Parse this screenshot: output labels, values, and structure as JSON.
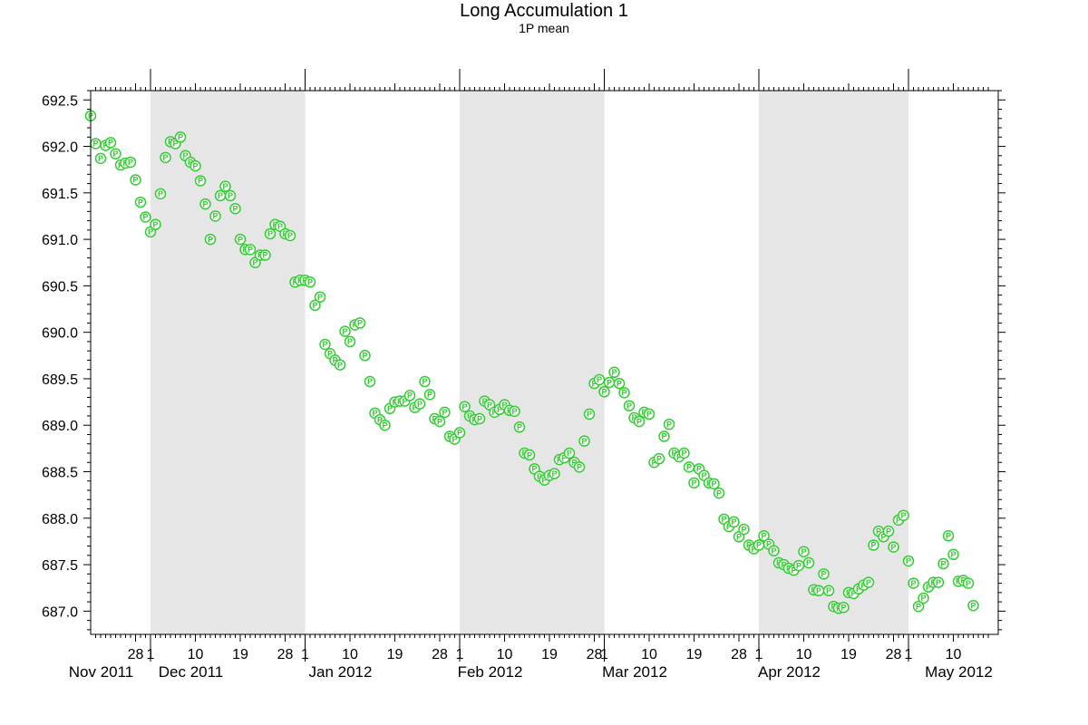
{
  "chart_data": {
    "type": "scatter",
    "title": "Long Accumulation 1",
    "subtitle": "1P mean",
    "marker_label": "P",
    "xlim": [
      "2011-11-19",
      "2012-05-18"
    ],
    "ylim": [
      686.75,
      692.6
    ],
    "yticks": [
      687.0,
      687.5,
      688.0,
      688.5,
      689.0,
      689.5,
      690.0,
      690.5,
      691.0,
      691.5,
      692.0,
      692.5
    ],
    "ytick_labels": [
      "687.0",
      "687.5",
      "688.0",
      "688.5",
      "689.0",
      "689.5",
      "690.0",
      "690.5",
      "691.0",
      "691.5",
      "692.0",
      "692.5"
    ],
    "x_day_ticks": [
      {
        "date": "2011-11-28",
        "label": "28"
      },
      {
        "date": "2011-12-01",
        "label": "1"
      },
      {
        "date": "2011-12-10",
        "label": "10"
      },
      {
        "date": "2011-12-19",
        "label": "19"
      },
      {
        "date": "2011-12-28",
        "label": "28"
      },
      {
        "date": "2012-01-01",
        "label": "1"
      },
      {
        "date": "2012-01-10",
        "label": "10"
      },
      {
        "date": "2012-01-19",
        "label": "19"
      },
      {
        "date": "2012-01-28",
        "label": "28"
      },
      {
        "date": "2012-02-01",
        "label": "1"
      },
      {
        "date": "2012-02-10",
        "label": "10"
      },
      {
        "date": "2012-02-19",
        "label": "19"
      },
      {
        "date": "2012-02-28",
        "label": "28"
      },
      {
        "date": "2012-03-01",
        "label": "1"
      },
      {
        "date": "2012-03-10",
        "label": "10"
      },
      {
        "date": "2012-03-19",
        "label": "19"
      },
      {
        "date": "2012-03-28",
        "label": "28"
      },
      {
        "date": "2012-04-01",
        "label": "1"
      },
      {
        "date": "2012-04-10",
        "label": "10"
      },
      {
        "date": "2012-04-19",
        "label": "19"
      },
      {
        "date": "2012-04-28",
        "label": "28"
      },
      {
        "date": "2012-05-01",
        "label": "1"
      },
      {
        "date": "2012-05-10",
        "label": "10"
      }
    ],
    "month_labels": [
      {
        "date": "2011-11-20",
        "label": "Nov 2011"
      },
      {
        "date": "2011-12-08",
        "label": "Dec 2011"
      },
      {
        "date": "2012-01-07",
        "label": "Jan 2012"
      },
      {
        "date": "2012-02-06",
        "label": "Feb 2012"
      },
      {
        "date": "2012-03-06",
        "label": "Mar 2012"
      },
      {
        "date": "2012-04-06",
        "label": "Apr 2012"
      },
      {
        "date": "2012-05-10",
        "label": "May 2012"
      }
    ],
    "month_boundaries": [
      "2011-12-01",
      "2012-01-01",
      "2012-02-01",
      "2012-03-01",
      "2012-04-01",
      "2012-05-01"
    ],
    "shaded_months": [
      {
        "start": "2011-12-01",
        "end": "2012-01-01"
      },
      {
        "start": "2012-02-01",
        "end": "2012-03-01"
      },
      {
        "start": "2012-04-01",
        "end": "2012-05-01"
      }
    ],
    "colors": {
      "marker": "#33cc33",
      "shade": "#e6e6e6",
      "axis": "#000000"
    },
    "grid": false,
    "series": [
      {
        "points": [
          [
            "2011-11-19",
            692.33
          ],
          [
            "2011-11-20",
            692.03
          ],
          [
            "2011-11-21",
            691.87
          ],
          [
            "2011-11-22",
            692.01
          ],
          [
            "2011-11-23",
            692.04
          ],
          [
            "2011-11-24",
            691.92
          ],
          [
            "2011-11-25",
            691.8
          ],
          [
            "2011-11-26",
            691.82
          ],
          [
            "2011-11-27",
            691.83
          ],
          [
            "2011-11-28",
            691.64
          ],
          [
            "2011-11-29",
            691.4
          ],
          [
            "2011-11-30",
            691.24
          ],
          [
            "2011-12-01",
            691.08
          ],
          [
            "2011-12-02",
            691.16
          ],
          [
            "2011-12-03",
            691.49
          ],
          [
            "2011-12-04",
            691.88
          ],
          [
            "2011-12-05",
            692.05
          ],
          [
            "2011-12-06",
            692.03
          ],
          [
            "2011-12-07",
            692.1
          ],
          [
            "2011-12-08",
            691.9
          ],
          [
            "2011-12-09",
            691.83
          ],
          [
            "2011-12-10",
            691.79
          ],
          [
            "2011-12-11",
            691.63
          ],
          [
            "2011-12-12",
            691.38
          ],
          [
            "2011-12-13",
            691.0
          ],
          [
            "2011-12-14",
            691.25
          ],
          [
            "2011-12-15",
            691.47
          ],
          [
            "2011-12-16",
            691.57
          ],
          [
            "2011-12-17",
            691.47
          ],
          [
            "2011-12-18",
            691.33
          ],
          [
            "2011-12-19",
            691.0
          ],
          [
            "2011-12-20",
            690.89
          ],
          [
            "2011-12-21",
            690.89
          ],
          [
            "2011-12-22",
            690.75
          ],
          [
            "2011-12-23",
            690.83
          ],
          [
            "2011-12-24",
            690.83
          ],
          [
            "2011-12-25",
            691.06
          ],
          [
            "2011-12-26",
            691.16
          ],
          [
            "2011-12-27",
            691.14
          ],
          [
            "2011-12-28",
            691.06
          ],
          [
            "2011-12-29",
            691.04
          ],
          [
            "2011-12-30",
            690.54
          ],
          [
            "2011-12-31",
            690.56
          ],
          [
            "2012-01-01",
            690.56
          ],
          [
            "2012-01-02",
            690.54
          ],
          [
            "2012-01-03",
            690.29
          ],
          [
            "2012-01-04",
            690.38
          ],
          [
            "2012-01-05",
            689.87
          ],
          [
            "2012-01-06",
            689.77
          ],
          [
            "2012-01-07",
            689.7
          ],
          [
            "2012-01-08",
            689.65
          ],
          [
            "2012-01-09",
            690.01
          ],
          [
            "2012-01-10",
            689.9
          ],
          [
            "2012-01-11",
            690.08
          ],
          [
            "2012-01-12",
            690.1
          ],
          [
            "2012-01-13",
            689.75
          ],
          [
            "2012-01-14",
            689.47
          ],
          [
            "2012-01-15",
            689.13
          ],
          [
            "2012-01-16",
            689.06
          ],
          [
            "2012-01-17",
            689.0
          ],
          [
            "2012-01-18",
            689.18
          ],
          [
            "2012-01-19",
            689.25
          ],
          [
            "2012-01-20",
            689.26
          ],
          [
            "2012-01-21",
            689.26
          ],
          [
            "2012-01-22",
            689.32
          ],
          [
            "2012-01-23",
            689.19
          ],
          [
            "2012-01-24",
            689.23
          ],
          [
            "2012-01-25",
            689.47
          ],
          [
            "2012-01-26",
            689.33
          ],
          [
            "2012-01-27",
            689.07
          ],
          [
            "2012-01-28",
            689.04
          ],
          [
            "2012-01-29",
            689.14
          ],
          [
            "2012-01-30",
            688.88
          ],
          [
            "2012-01-31",
            688.85
          ],
          [
            "2012-02-01",
            688.92
          ],
          [
            "2012-02-02",
            689.2
          ],
          [
            "2012-02-03",
            689.1
          ],
          [
            "2012-02-04",
            689.06
          ],
          [
            "2012-02-05",
            689.07
          ],
          [
            "2012-02-06",
            689.26
          ],
          [
            "2012-02-07",
            689.22
          ],
          [
            "2012-02-08",
            689.14
          ],
          [
            "2012-02-09",
            689.17
          ],
          [
            "2012-02-10",
            689.22
          ],
          [
            "2012-02-11",
            689.16
          ],
          [
            "2012-02-12",
            689.15
          ],
          [
            "2012-02-13",
            688.98
          ],
          [
            "2012-02-14",
            688.7
          ],
          [
            "2012-02-15",
            688.68
          ],
          [
            "2012-02-16",
            688.53
          ],
          [
            "2012-02-17",
            688.45
          ],
          [
            "2012-02-18",
            688.41
          ],
          [
            "2012-02-19",
            688.46
          ],
          [
            "2012-02-20",
            688.48
          ],
          [
            "2012-02-21",
            688.63
          ],
          [
            "2012-02-22",
            688.65
          ],
          [
            "2012-02-23",
            688.7
          ],
          [
            "2012-02-24",
            688.6
          ],
          [
            "2012-02-25",
            688.55
          ],
          [
            "2012-02-26",
            688.83
          ],
          [
            "2012-02-27",
            689.12
          ],
          [
            "2012-02-28",
            689.45
          ],
          [
            "2012-02-29",
            689.49
          ],
          [
            "2012-03-01",
            689.36
          ],
          [
            "2012-03-02",
            689.46
          ],
          [
            "2012-03-03",
            689.57
          ],
          [
            "2012-03-04",
            689.45
          ],
          [
            "2012-03-05",
            689.35
          ],
          [
            "2012-03-06",
            689.21
          ],
          [
            "2012-03-07",
            689.08
          ],
          [
            "2012-03-08",
            689.04
          ],
          [
            "2012-03-09",
            689.14
          ],
          [
            "2012-03-10",
            689.12
          ],
          [
            "2012-03-11",
            688.6
          ],
          [
            "2012-03-12",
            688.64
          ],
          [
            "2012-03-13",
            688.88
          ],
          [
            "2012-03-14",
            689.01
          ],
          [
            "2012-03-15",
            688.7
          ],
          [
            "2012-03-16",
            688.66
          ],
          [
            "2012-03-17",
            688.7
          ],
          [
            "2012-03-18",
            688.55
          ],
          [
            "2012-03-19",
            688.38
          ],
          [
            "2012-03-20",
            688.53
          ],
          [
            "2012-03-21",
            688.46
          ],
          [
            "2012-03-22",
            688.38
          ],
          [
            "2012-03-23",
            688.37
          ],
          [
            "2012-03-24",
            688.27
          ],
          [
            "2012-03-25",
            687.99
          ],
          [
            "2012-03-26",
            687.91
          ],
          [
            "2012-03-27",
            687.96
          ],
          [
            "2012-03-28",
            687.8
          ],
          [
            "2012-03-29",
            687.88
          ],
          [
            "2012-03-30",
            687.71
          ],
          [
            "2012-03-31",
            687.67
          ],
          [
            "2012-04-01",
            687.71
          ],
          [
            "2012-04-02",
            687.81
          ],
          [
            "2012-04-03",
            687.72
          ],
          [
            "2012-04-04",
            687.65
          ],
          [
            "2012-04-05",
            687.52
          ],
          [
            "2012-04-06",
            687.5
          ],
          [
            "2012-04-07",
            687.46
          ],
          [
            "2012-04-08",
            687.44
          ],
          [
            "2012-04-09",
            687.49
          ],
          [
            "2012-04-10",
            687.64
          ],
          [
            "2012-04-11",
            687.52
          ],
          [
            "2012-04-12",
            687.23
          ],
          [
            "2012-04-13",
            687.22
          ],
          [
            "2012-04-14",
            687.4
          ],
          [
            "2012-04-15",
            687.22
          ],
          [
            "2012-04-16",
            687.05
          ],
          [
            "2012-04-17",
            687.03
          ],
          [
            "2012-04-18",
            687.04
          ],
          [
            "2012-04-19",
            687.2
          ],
          [
            "2012-04-20",
            687.19
          ],
          [
            "2012-04-21",
            687.24
          ],
          [
            "2012-04-22",
            687.28
          ],
          [
            "2012-04-23",
            687.31
          ],
          [
            "2012-04-24",
            687.71
          ],
          [
            "2012-04-25",
            687.86
          ],
          [
            "2012-04-26",
            687.8
          ],
          [
            "2012-04-27",
            687.86
          ],
          [
            "2012-04-28",
            687.69
          ],
          [
            "2012-04-29",
            687.98
          ],
          [
            "2012-04-30",
            688.03
          ],
          [
            "2012-05-01",
            687.54
          ],
          [
            "2012-05-02",
            687.3
          ],
          [
            "2012-05-03",
            687.05
          ],
          [
            "2012-05-04",
            687.14
          ],
          [
            "2012-05-05",
            687.26
          ],
          [
            "2012-05-06",
            687.31
          ],
          [
            "2012-05-07",
            687.31
          ],
          [
            "2012-05-08",
            687.51
          ],
          [
            "2012-05-09",
            687.81
          ],
          [
            "2012-05-10",
            687.61
          ],
          [
            "2012-05-11",
            687.32
          ],
          [
            "2012-05-12",
            687.33
          ],
          [
            "2012-05-13",
            687.3
          ],
          [
            "2012-05-14",
            687.06
          ]
        ]
      }
    ]
  }
}
